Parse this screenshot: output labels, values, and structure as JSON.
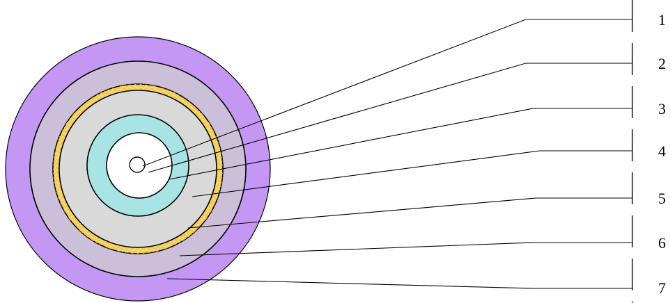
{
  "layers": [
    {
      "label": "1",
      "fill": "#ffffff"
    },
    {
      "label": "2",
      "fill": "#ffffff"
    },
    {
      "label": "3",
      "fill": "#a8e4e4"
    },
    {
      "label": "4",
      "fill": "#d9d9d9"
    },
    {
      "label": "5",
      "fill": "#f5d66b"
    },
    {
      "label": "6",
      "fill": "#cbbfd9"
    },
    {
      "label": "7",
      "fill": "#c597f5"
    }
  ],
  "colors": {
    "outline": "#000000",
    "shield_weave": "#f0c040",
    "background": "#ffffff"
  }
}
